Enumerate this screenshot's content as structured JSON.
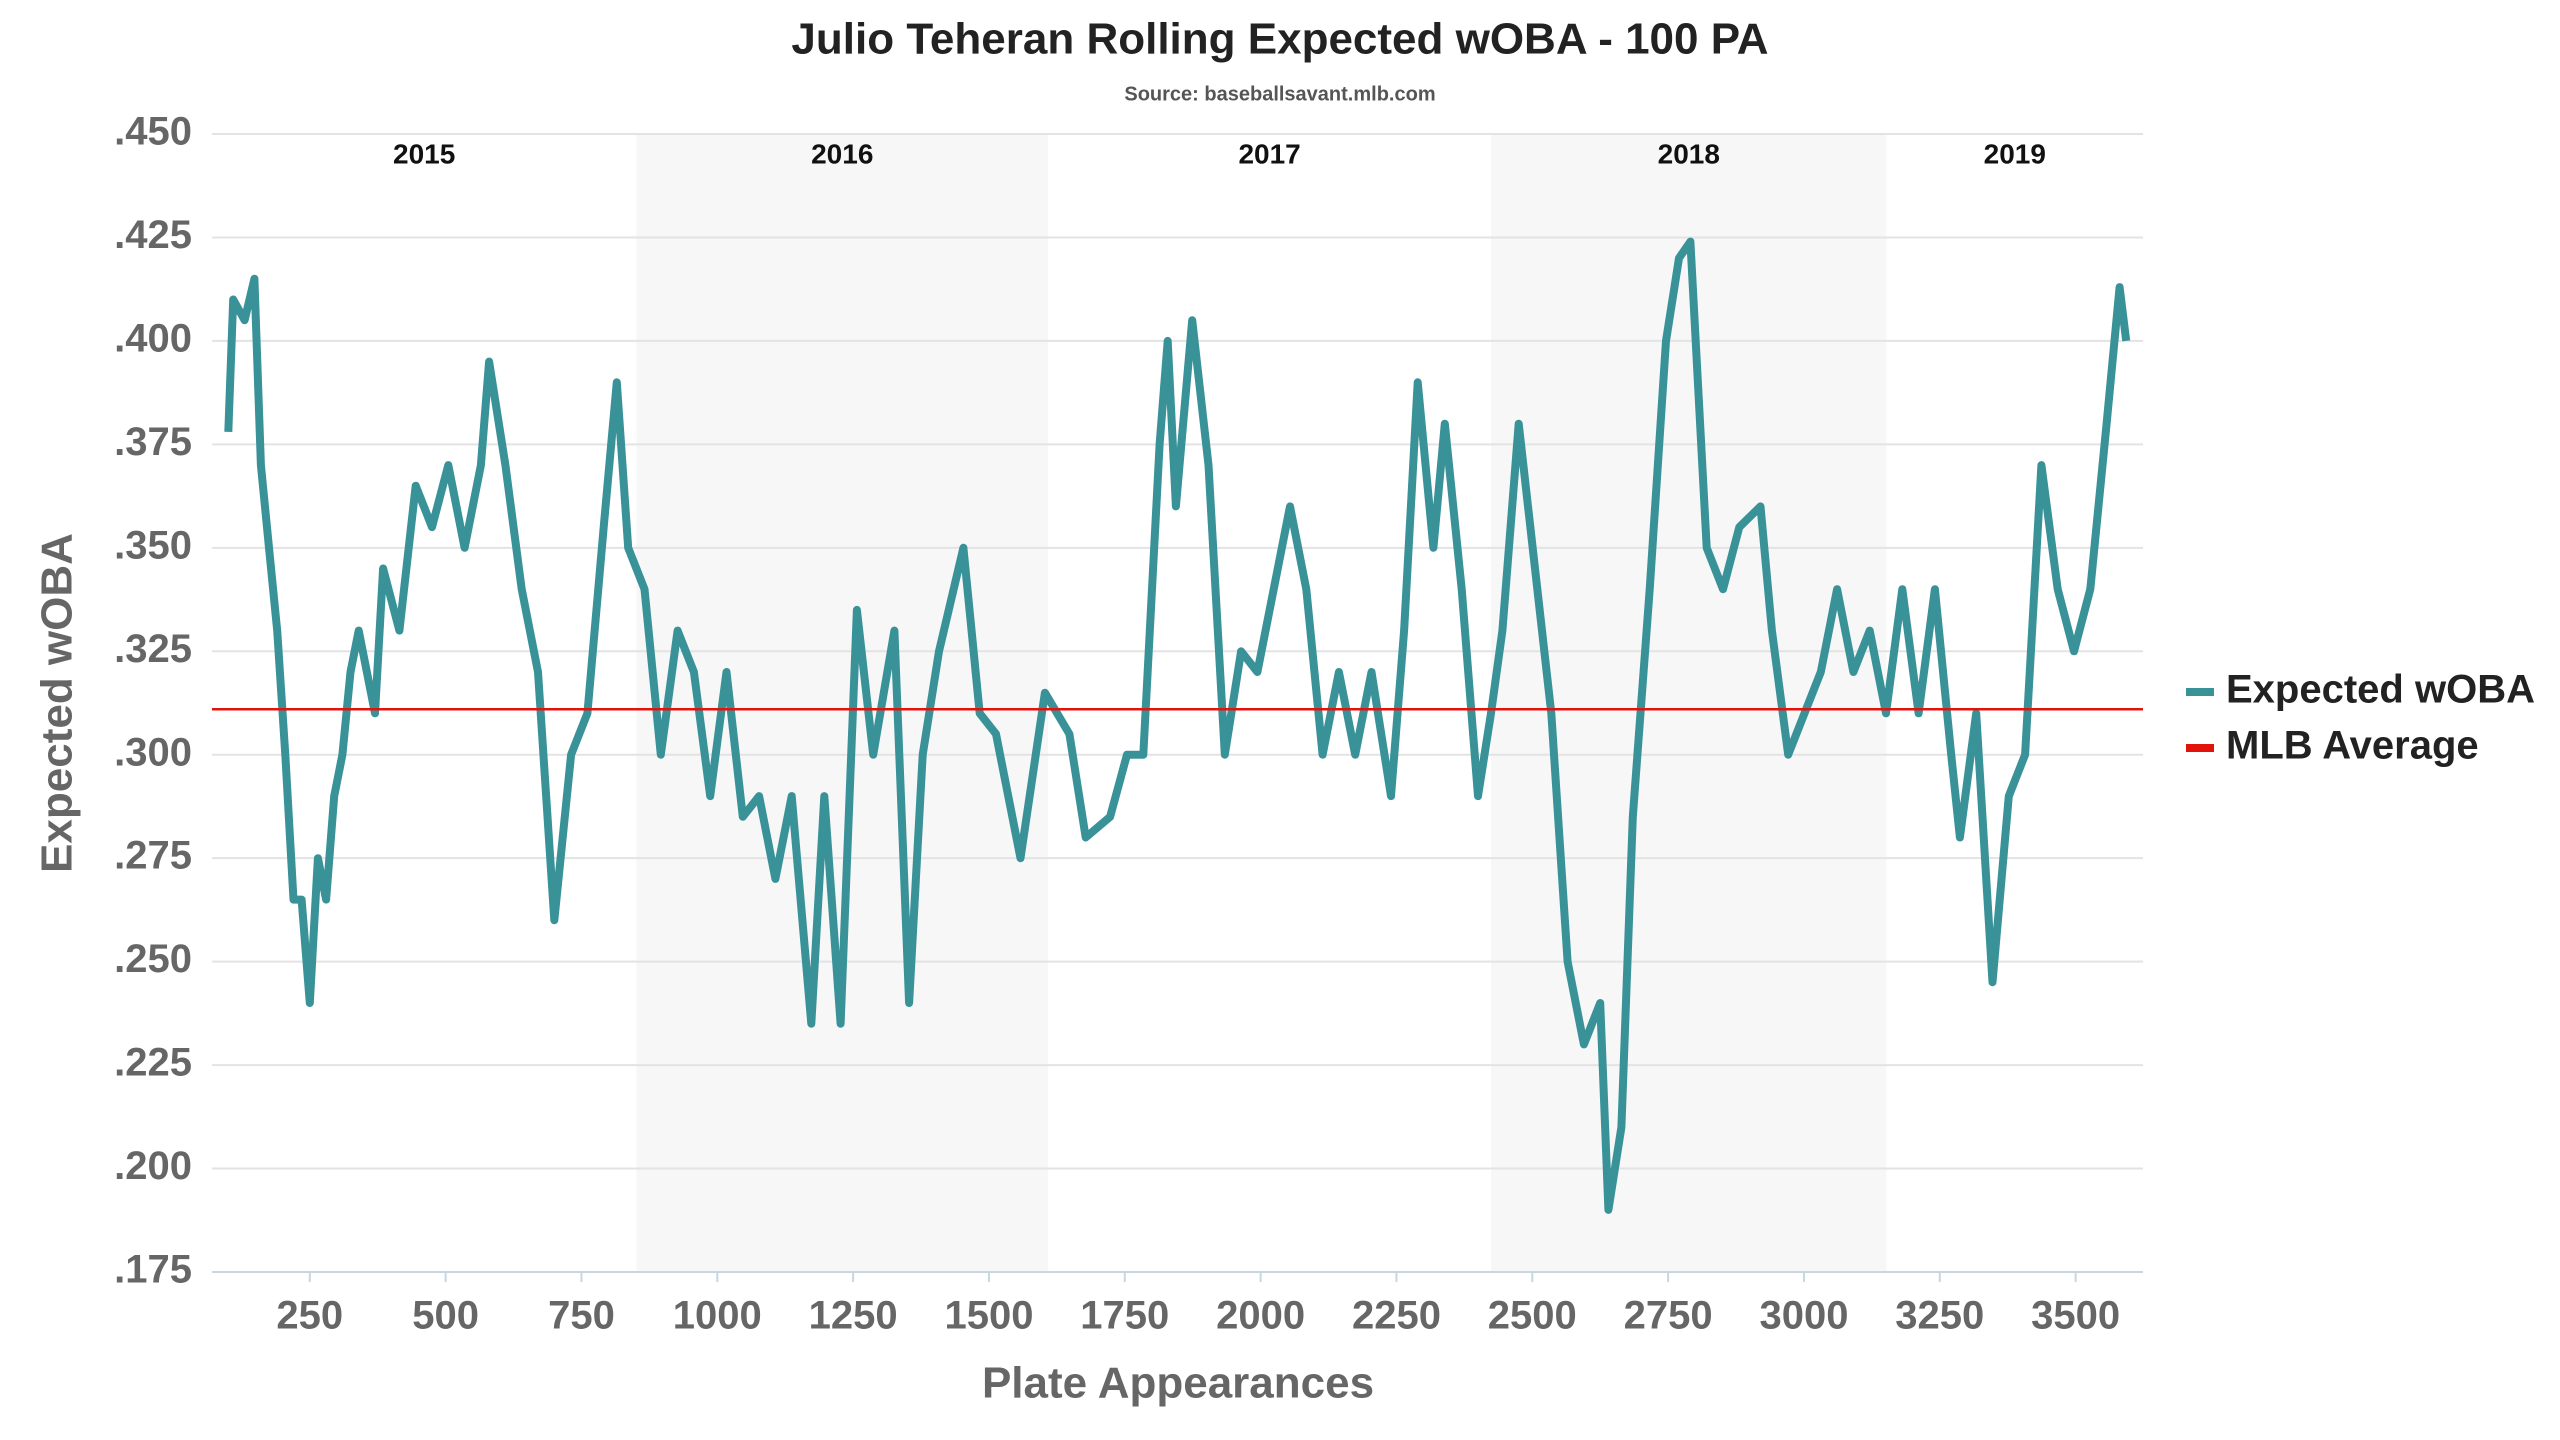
{
  "chart_data": {
    "type": "line",
    "title": "Julio Teheran Rolling Expected wOBA - 100 PA",
    "subtitle": "Source: baseballsavant.mlb.com",
    "x_label": "Plate Appearances",
    "y_label": "Expected wOBA",
    "xlim": [
      70,
      3624
    ],
    "xticks": [
      250,
      500,
      750,
      1000,
      1250,
      1500,
      1750,
      2000,
      2250,
      2500,
      2750,
      3000,
      3250,
      3500
    ],
    "ylim": [
      0.175,
      0.45
    ],
    "yticks": [
      {
        "value": 0.175,
        "label": ".175"
      },
      {
        "value": 0.2,
        "label": ".200"
      },
      {
        "value": 0.225,
        "label": ".225"
      },
      {
        "value": 0.25,
        "label": ".250"
      },
      {
        "value": 0.275,
        "label": ".275"
      },
      {
        "value": 0.3,
        "label": ".300"
      },
      {
        "value": 0.325,
        "label": ".325"
      },
      {
        "value": 0.35,
        "label": ".350"
      },
      {
        "value": 0.375,
        "label": ".375"
      },
      {
        "value": 0.4,
        "label": ".400"
      },
      {
        "value": 0.425,
        "label": ".425"
      },
      {
        "value": 0.45,
        "label": ".450"
      }
    ],
    "grid": true,
    "legend": "right",
    "seasons": [
      {
        "label": "2015",
        "start": 70,
        "end": 851,
        "shaded": false
      },
      {
        "label": "2016",
        "start": 851,
        "end": 1609,
        "shaded": true
      },
      {
        "label": "2017",
        "start": 1609,
        "end": 2424,
        "shaded": false
      },
      {
        "label": "2018",
        "start": 2424,
        "end": 3152,
        "shaded": true
      },
      {
        "label": "2019",
        "start": 3152,
        "end": 3624,
        "shaded": false
      }
    ],
    "x": [
      100,
      109,
      130,
      148,
      160,
      175,
      190,
      205,
      220,
      235,
      250,
      265,
      280,
      295,
      310,
      325,
      340,
      370,
      385,
      415,
      445,
      475,
      505,
      535,
      565,
      580,
      610,
      640,
      670,
      700,
      731,
      761,
      791,
      815,
      836,
      866,
      896,
      927,
      957,
      987,
      1017,
      1047,
      1077,
      1107,
      1137,
      1173,
      1197,
      1227,
      1257,
      1287,
      1326,
      1353,
      1378,
      1408,
      1453,
      1483,
      1513,
      1558,
      1603,
      1648,
      1678,
      1723,
      1754,
      1784,
      1814,
      1829,
      1844,
      1874,
      1904,
      1934,
      1964,
      1994,
      2024,
      2054,
      2084,
      2114,
      2144,
      2174,
      2204,
      2240,
      2264,
      2289,
      2318,
      2339,
      2370,
      2400,
      2424,
      2445,
      2475,
      2505,
      2535,
      2565,
      2595,
      2625,
      2640,
      2664,
      2685,
      2716,
      2746,
      2770,
      2791,
      2821,
      2851,
      2881,
      2920,
      2941,
      2971,
      3001,
      3031,
      3061,
      3091,
      3121,
      3151,
      3181,
      3211,
      3241,
      3271,
      3287,
      3317,
      3347,
      3377,
      3407,
      3437,
      3467,
      3497,
      3527,
      3557,
      3581,
      3593
    ],
    "series": [
      {
        "name": "Expected wOBA",
        "color": "#3a9299",
        "values": [
          0.378,
          0.41,
          0.405,
          0.415,
          0.37,
          0.35,
          0.33,
          0.3,
          0.265,
          0.265,
          0.24,
          0.275,
          0.265,
          0.29,
          0.3,
          0.32,
          0.33,
          0.31,
          0.345,
          0.33,
          0.365,
          0.355,
          0.37,
          0.35,
          0.37,
          0.395,
          0.37,
          0.34,
          0.32,
          0.26,
          0.3,
          0.31,
          0.355,
          0.39,
          0.35,
          0.34,
          0.3,
          0.33,
          0.32,
          0.29,
          0.32,
          0.285,
          0.29,
          0.27,
          0.29,
          0.235,
          0.29,
          0.235,
          0.335,
          0.3,
          0.33,
          0.24,
          0.3,
          0.325,
          0.35,
          0.31,
          0.305,
          0.275,
          0.315,
          0.305,
          0.28,
          0.285,
          0.3,
          0.3,
          0.375,
          0.4,
          0.36,
          0.405,
          0.37,
          0.3,
          0.325,
          0.32,
          0.34,
          0.36,
          0.34,
          0.3,
          0.32,
          0.3,
          0.32,
          0.29,
          0.33,
          0.39,
          0.35,
          0.38,
          0.34,
          0.29,
          0.31,
          0.33,
          0.38,
          0.345,
          0.31,
          0.25,
          0.23,
          0.24,
          0.19,
          0.21,
          0.285,
          0.34,
          0.4,
          0.42,
          0.424,
          0.35,
          0.34,
          0.355,
          0.36,
          0.33,
          0.3,
          0.31,
          0.32,
          0.34,
          0.32,
          0.33,
          0.31,
          0.34,
          0.31,
          0.34,
          0.3,
          0.28,
          0.31,
          0.245,
          0.29,
          0.3,
          0.37,
          0.34,
          0.325,
          0.34,
          0.38,
          0.413,
          0.4
        ]
      }
    ],
    "reference_lines": [
      {
        "name": "MLB Average",
        "color": "#e3120b",
        "value": 0.311
      }
    ]
  }
}
